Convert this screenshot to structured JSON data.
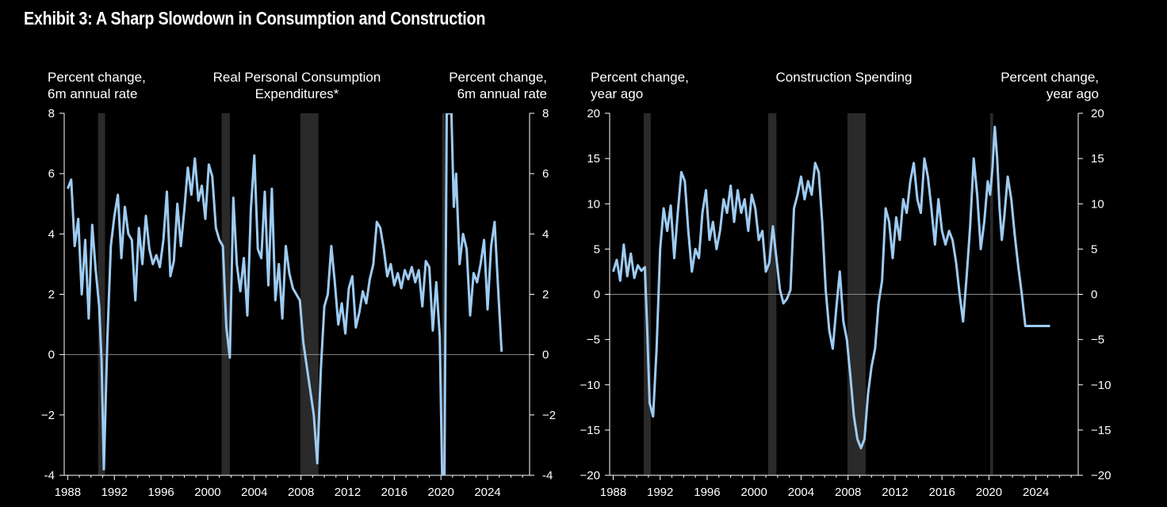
{
  "title": "Exhibit 3: A Sharp Slowdown in Consumption and Construction",
  "colors": {
    "background": "#000000",
    "line": "#9ecbf2",
    "recession": "#2a2a2a",
    "axis": "#ffffff",
    "zero_line": "#888888"
  },
  "recessions": [
    [
      1990.6,
      1991.2
    ],
    [
      2001.2,
      2001.9
    ],
    [
      2007.95,
      2009.5
    ],
    [
      2020.1,
      2020.35
    ]
  ],
  "chart_data": [
    {
      "type": "line",
      "title": "Real Personal Consumption Expenditures*",
      "left_axis_label": [
        "Percent change,",
        "6m annual rate"
      ],
      "right_axis_label": [
        "Percent change,",
        "6m annual rate"
      ],
      "xlim": [
        1987.7,
        2027.6
      ],
      "ylim": [
        -4,
        8
      ],
      "x_ticks": [
        "1988",
        "1992",
        "1996",
        "2000",
        "2004",
        "2008",
        "2012",
        "2016",
        "2020",
        "2024"
      ],
      "y_ticks": [
        "-4",
        "−2",
        "0",
        "2",
        "4",
        "6",
        "8"
      ],
      "y_tick_values": [
        -4,
        -2,
        0,
        2,
        4,
        6,
        8
      ],
      "series": [
        {
          "x": [
            1988.0,
            1988.3,
            1988.6,
            1988.9,
            1989.2,
            1989.5,
            1989.8,
            1990.1,
            1990.4,
            1990.7,
            1990.9,
            1991.1,
            1991.4,
            1991.7,
            1992.0,
            1992.3,
            1992.6,
            1992.9,
            1993.2,
            1993.5,
            1993.8,
            1994.1,
            1994.4,
            1994.7,
            1995.0,
            1995.3,
            1995.6,
            1995.9,
            1996.2,
            1996.5,
            1996.8,
            1997.1,
            1997.4,
            1997.7,
            1998.0,
            1998.3,
            1998.6,
            1998.9,
            1999.2,
            1999.5,
            1999.8,
            2000.1,
            2000.4,
            2000.7,
            2001.0,
            2001.3,
            2001.6,
            2001.9,
            2002.2,
            2002.5,
            2002.8,
            2003.1,
            2003.4,
            2003.7,
            2004.0,
            2004.3,
            2004.6,
            2004.9,
            2005.2,
            2005.5,
            2005.8,
            2006.1,
            2006.4,
            2006.7,
            2007.0,
            2007.3,
            2007.6,
            2007.9,
            2008.2,
            2008.5,
            2008.8,
            2009.1,
            2009.4,
            2009.7,
            2010.0,
            2010.3,
            2010.6,
            2010.9,
            2011.2,
            2011.5,
            2011.8,
            2012.1,
            2012.4,
            2012.7,
            2013.0,
            2013.3,
            2013.6,
            2013.9,
            2014.2,
            2014.5,
            2014.8,
            2015.1,
            2015.4,
            2015.7,
            2016.0,
            2016.3,
            2016.6,
            2016.9,
            2017.2,
            2017.5,
            2017.8,
            2018.1,
            2018.4,
            2018.7,
            2019.0,
            2019.3,
            2019.6,
            2019.9,
            2020.1,
            2020.3,
            2020.5,
            2020.7,
            2020.9,
            2021.1,
            2021.3,
            2021.6,
            2021.9,
            2022.2,
            2022.5,
            2022.8,
            2023.1,
            2023.4,
            2023.7,
            2024.0,
            2024.3,
            2024.6,
            2024.9,
            2025.2
          ],
          "y": [
            5.5,
            5.8,
            3.6,
            4.5,
            2.0,
            3.8,
            1.2,
            4.3,
            2.8,
            1.6,
            -0.2,
            -3.8,
            0.5,
            3.6,
            4.6,
            5.3,
            3.2,
            4.9,
            4.0,
            3.8,
            1.8,
            4.2,
            3.0,
            4.6,
            3.5,
            3.0,
            3.3,
            2.9,
            3.8,
            5.4,
            2.6,
            3.1,
            5.0,
            3.6,
            4.8,
            6.2,
            5.3,
            6.5,
            5.1,
            5.6,
            4.5,
            6.3,
            5.9,
            4.2,
            3.8,
            3.6,
            0.9,
            -0.1,
            5.2,
            3.0,
            2.1,
            3.2,
            1.3,
            4.8,
            6.6,
            3.5,
            3.2,
            5.4,
            2.3,
            5.5,
            1.8,
            3.0,
            1.2,
            3.6,
            2.7,
            2.2,
            2.0,
            1.8,
            0.4,
            -0.4,
            -1.2,
            -2.0,
            -3.6,
            -0.5,
            1.6,
            2.0,
            3.6,
            2.4,
            1.0,
            1.7,
            0.7,
            2.2,
            2.6,
            0.9,
            1.4,
            2.1,
            1.7,
            2.5,
            3.0,
            4.4,
            4.2,
            3.5,
            2.6,
            3.0,
            2.3,
            2.7,
            2.2,
            2.8,
            2.5,
            2.9,
            2.4,
            2.8,
            1.6,
            3.1,
            2.9,
            0.8,
            2.4,
            0.6,
            -4,
            -4,
            8,
            8,
            8,
            4.9,
            6.0,
            3.0,
            4.0,
            3.5,
            1.3,
            2.7,
            2.4,
            3.0,
            3.8,
            1.5,
            3.6,
            4.4,
            2.2,
            0.1
          ]
        }
      ]
    },
    {
      "type": "line",
      "title": "Construction Spending",
      "left_axis_label": [
        "Percent change,",
        "year ago"
      ],
      "right_axis_label": [
        "Percent change,",
        "year ago"
      ],
      "xlim": [
        1987.7,
        2027.6
      ],
      "ylim": [
        -20,
        20
      ],
      "x_ticks": [
        "1988",
        "1992",
        "1996",
        "2000",
        "2004",
        "2008",
        "2012",
        "2016",
        "2020",
        "2024"
      ],
      "y_ticks": [
        "−20",
        "−15",
        "−10",
        "−5",
        "0",
        "5",
        "10",
        "15",
        "20"
      ],
      "y_tick_values": [
        -20,
        -15,
        -10,
        -5,
        0,
        5,
        10,
        15,
        20
      ],
      "series": [
        {
          "x": [
            1988.0,
            1988.3,
            1988.6,
            1988.9,
            1989.2,
            1989.5,
            1989.8,
            1990.1,
            1990.4,
            1990.7,
            1990.9,
            1991.1,
            1991.4,
            1991.7,
            1992.0,
            1992.3,
            1992.6,
            1992.9,
            1993.2,
            1993.5,
            1993.8,
            1994.1,
            1994.4,
            1994.7,
            1995.0,
            1995.3,
            1995.6,
            1995.9,
            1996.2,
            1996.5,
            1996.8,
            1997.1,
            1997.4,
            1997.7,
            1998.0,
            1998.3,
            1998.6,
            1998.9,
            1999.2,
            1999.5,
            1999.8,
            2000.1,
            2000.4,
            2000.7,
            2001.0,
            2001.3,
            2001.6,
            2001.9,
            2002.2,
            2002.5,
            2002.8,
            2003.1,
            2003.4,
            2003.7,
            2004.0,
            2004.3,
            2004.6,
            2004.9,
            2005.2,
            2005.5,
            2005.8,
            2006.1,
            2006.4,
            2006.7,
            2007.0,
            2007.3,
            2007.6,
            2007.9,
            2008.2,
            2008.5,
            2008.8,
            2009.1,
            2009.4,
            2009.7,
            2010.0,
            2010.3,
            2010.6,
            2010.9,
            2011.2,
            2011.5,
            2011.8,
            2012.1,
            2012.4,
            2012.7,
            2013.0,
            2013.3,
            2013.6,
            2013.9,
            2014.2,
            2014.5,
            2014.8,
            2015.1,
            2015.4,
            2015.7,
            2016.0,
            2016.3,
            2016.6,
            2016.9,
            2017.2,
            2017.5,
            2017.8,
            2018.1,
            2018.4,
            2018.7,
            2019.0,
            2019.3,
            2019.6,
            2019.9,
            2020.1,
            2020.3,
            2020.5,
            2020.7,
            2020.9,
            2021.1,
            2021.3,
            2021.6,
            2021.9,
            2022.2,
            2022.5,
            2022.8,
            2023.1,
            2023.4,
            2023.7,
            2024.0,
            2024.3,
            2024.6,
            2024.9,
            2025.2
          ],
          "y": [
            2.5,
            3.8,
            1.5,
            5.5,
            2.0,
            4.5,
            1.8,
            3.2,
            2.6,
            3.0,
            -4.0,
            -12.0,
            -13.5,
            -6.0,
            5.0,
            9.5,
            7.0,
            9.8,
            4.0,
            9.0,
            13.5,
            12.5,
            7.0,
            2.5,
            5.0,
            4.0,
            9.0,
            11.5,
            6.0,
            8.0,
            5.0,
            7.0,
            10.5,
            9.0,
            12.0,
            8.0,
            11.5,
            9.0,
            10.5,
            7.0,
            11.0,
            9.5,
            6.0,
            7.0,
            2.5,
            3.5,
            7.5,
            4.0,
            0.5,
            -1.0,
            -0.5,
            0.5,
            9.5,
            11.0,
            13.0,
            10.5,
            12.5,
            11.0,
            14.5,
            13.5,
            8.0,
            0.5,
            -4.0,
            -6.0,
            -1.5,
            2.5,
            -3.0,
            -5.0,
            -9.0,
            -13.5,
            -16.0,
            -17.0,
            -16.0,
            -11.0,
            -8.0,
            -6.0,
            -1.0,
            1.5,
            9.5,
            8.0,
            4.0,
            8.5,
            6.0,
            10.5,
            9.0,
            12.5,
            14.5,
            10.5,
            9.0,
            15.0,
            13.0,
            9.5,
            5.5,
            10.5,
            7.0,
            5.5,
            7.0,
            6.0,
            3.5,
            0.0,
            -3.0,
            2.0,
            7.5,
            15.0,
            11.0,
            5.0,
            8.0,
            12.5,
            11.0,
            14.0,
            18.5,
            15.0,
            9.5,
            6.0,
            8.5,
            13.0,
            10.5,
            6.5,
            3.0,
            0.0,
            -3.5,
            -3.5,
            -3.5,
            -3.5,
            -3.5,
            -3.5,
            -3.5,
            -3.5
          ]
        }
      ]
    }
  ]
}
